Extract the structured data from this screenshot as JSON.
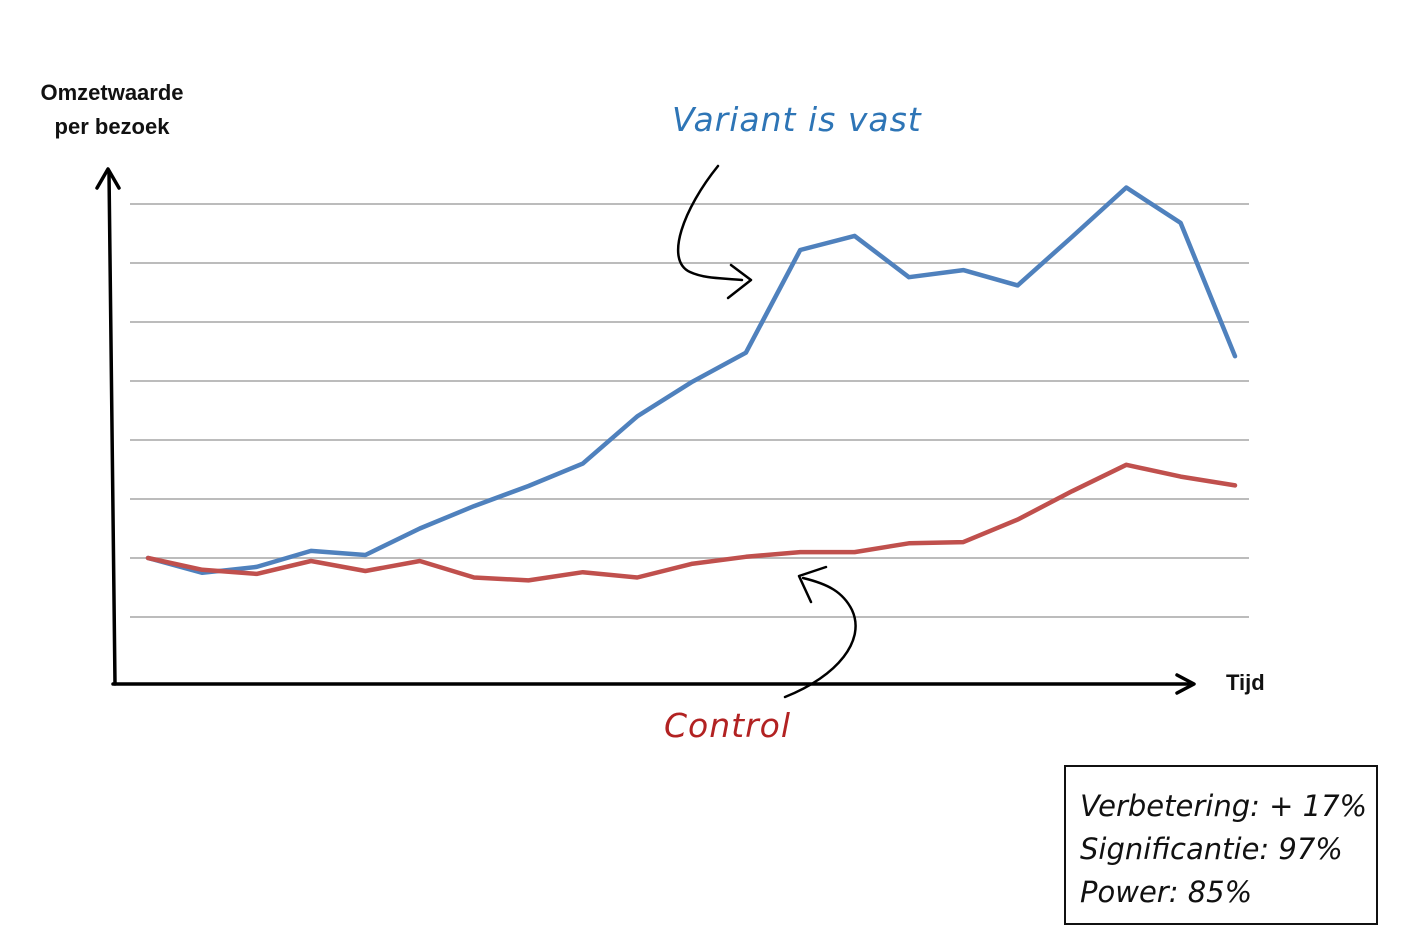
{
  "chart_data": {
    "type": "line",
    "ylabel_line1": "Omzetwaarde",
    "ylabel_line2": "per bezoek",
    "xlabel": "Tijd",
    "x": [
      1,
      2,
      3,
      4,
      5,
      6,
      7,
      8,
      9,
      10,
      11,
      12,
      13,
      14,
      15,
      16,
      17,
      18,
      19,
      20,
      21
    ],
    "ylim": [
      0,
      9
    ],
    "gridlines": [
      1,
      2,
      3,
      4,
      5,
      6,
      7,
      8
    ],
    "series": [
      {
        "key": "variant",
        "color": "#4f81bd",
        "values": [
          2.0,
          1.75,
          1.85,
          2.12,
          2.05,
          2.5,
          2.88,
          3.22,
          3.6,
          4.4,
          4.98,
          5.48,
          7.22,
          7.46,
          6.76,
          6.88,
          6.62,
          7.44,
          8.28,
          7.68,
          5.42
        ]
      },
      {
        "key": "control",
        "color": "#c0504d",
        "values": [
          2.0,
          1.8,
          1.73,
          1.95,
          1.78,
          1.95,
          1.67,
          1.62,
          1.76,
          1.67,
          1.9,
          2.02,
          2.1,
          2.1,
          2.25,
          2.27,
          2.65,
          3.13,
          3.58,
          3.38,
          3.23
        ]
      }
    ]
  },
  "annotations": {
    "variant": "Variant is vast",
    "control": "Control"
  },
  "colors": {
    "variant_annotation": "#2e75b6",
    "control_annotation": "#b22222",
    "gridline": "#a6a6a6",
    "axis": "#000000"
  },
  "stats": {
    "improvement": "Verbetering: + 17%",
    "significance": "Significantie: 97%",
    "power": "Power: 85%"
  }
}
